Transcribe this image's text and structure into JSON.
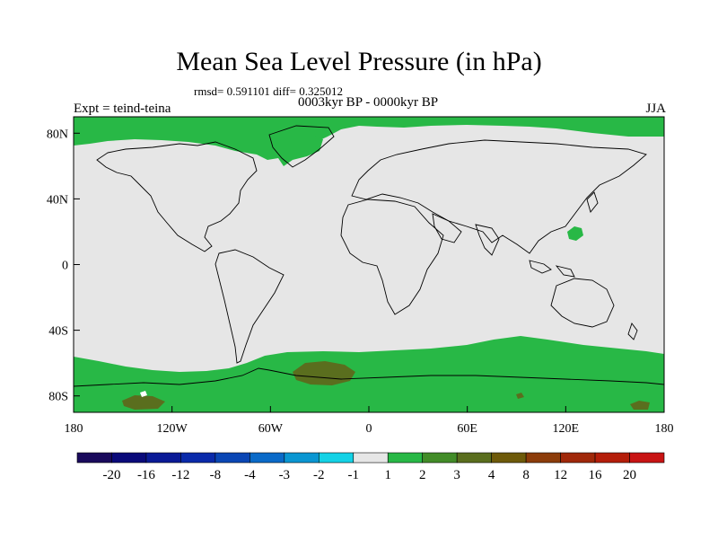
{
  "title": "Mean Sea Level Pressure (in hPa)",
  "stats_text": "rmsd= 0.591101  diff= 0.325012",
  "subtitle": "0003kyr BP - 0000kyr BP",
  "experiment_label": "Expt = teind-teina",
  "season": "JJA",
  "axes": {
    "x_ticks": [
      "180",
      "120W",
      "60W",
      "0",
      "60E",
      "120E",
      "180"
    ],
    "y_ticks": [
      "80N",
      "40N",
      "0",
      "40S",
      "80S"
    ]
  },
  "colorbar": {
    "labels": [
      "-20",
      "-16",
      "-12",
      "-8",
      "-4",
      "-3",
      "-2",
      "-1",
      "1",
      "2",
      "3",
      "4",
      "8",
      "12",
      "16",
      "20"
    ],
    "colors": [
      "#1a0a5c",
      "#0a0a7a",
      "#0a1a96",
      "#0a2aaa",
      "#0a46b4",
      "#0a6ac8",
      "#0a96d2",
      "#14d2e6",
      "#e6e6e6",
      "#28b846",
      "#428c28",
      "#5a6e1e",
      "#6e5a0a",
      "#8c3c0a",
      "#a0280a",
      "#b41e0a",
      "#c81414"
    ]
  },
  "colors": {
    "background_field": "#e6e6e6",
    "positive_1_2": "#28b846",
    "positive_3_4": "#5a6e1e",
    "coastline": "#000000"
  }
}
